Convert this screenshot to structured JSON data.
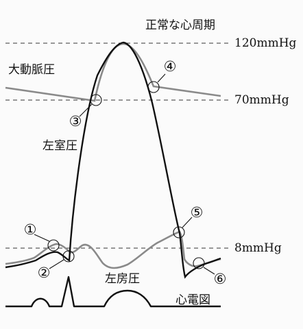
{
  "title": "正常な心周期",
  "pressure_levels": {
    "high": "120mmHg",
    "mid": "70mmHg",
    "low": "8mmHg"
  },
  "curves": {
    "aorta": "大動脈圧",
    "left_ventricle": "左室圧",
    "left_atrium": "左房圧",
    "ecg": "心電図"
  },
  "markers": [
    "①",
    "②",
    "③",
    "④",
    "⑤",
    "⑥"
  ],
  "colors": {
    "ventricle_line": "#111111",
    "pressure_gray": "#8a8a8a"
  }
}
